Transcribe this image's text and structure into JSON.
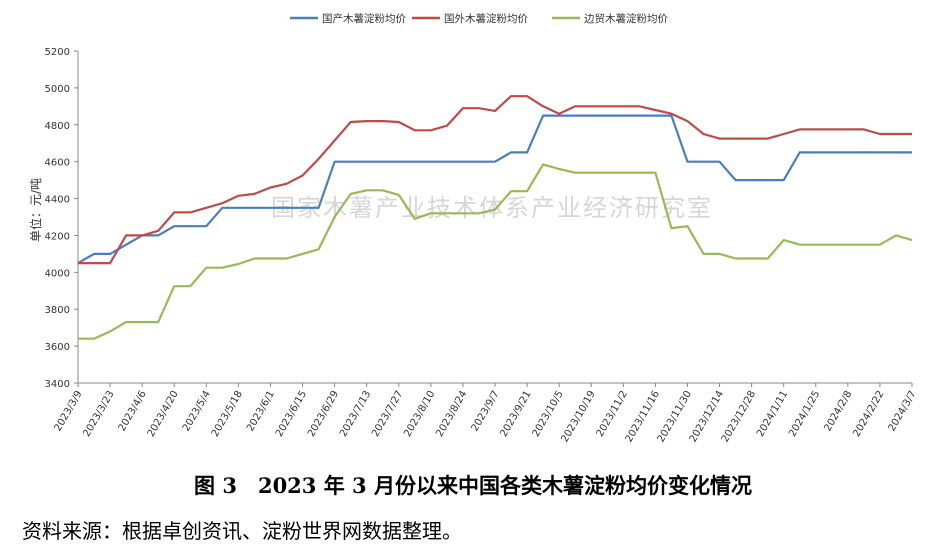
{
  "chart_data": {
    "type": "line",
    "ylabel": "单位：元/吨",
    "ylim": [
      3400,
      5200
    ],
    "yticks": [
      3400,
      3600,
      3800,
      4000,
      4200,
      4400,
      4600,
      4800,
      5000,
      5200
    ],
    "legend_position": "top-center",
    "grid": false,
    "watermark": "国家木薯产业技术体系产业经济研究室",
    "x": [
      "2023/3/9",
      "2023/3/16",
      "2023/3/23",
      "2023/3/30",
      "2023/4/6",
      "2023/4/13",
      "2023/4/20",
      "2023/4/27",
      "2023/5/4",
      "2023/5/11",
      "2023/5/18",
      "2023/5/25",
      "2023/6/1",
      "2023/6/8",
      "2023/6/15",
      "2023/6/22",
      "2023/6/29",
      "2023/7/6",
      "2023/7/13",
      "2023/7/20",
      "2023/7/27",
      "2023/8/3",
      "2023/8/10",
      "2023/8/17",
      "2023/8/24",
      "2023/8/31",
      "2023/9/7",
      "2023/9/14",
      "2023/9/21",
      "2023/9/28",
      "2023/10/5",
      "2023/10/12",
      "2023/10/19",
      "2023/10/26",
      "2023/11/2",
      "2023/11/9",
      "2023/11/16",
      "2023/11/23",
      "2023/11/30",
      "2023/12/7",
      "2023/12/14",
      "2023/12/21",
      "2023/12/28",
      "2024/1/4",
      "2024/1/11",
      "2024/1/18",
      "2024/1/25",
      "2024/2/1",
      "2024/2/8",
      "2024/2/15",
      "2024/2/22",
      "2024/2/29",
      "2024/3/7"
    ],
    "xtick_labels": [
      "2023/3/9",
      "2023/3/23",
      "2023/4/6",
      "2023/4/20",
      "2023/5/4",
      "2023/5/18",
      "2023/6/1",
      "2023/6/15",
      "2023/6/29",
      "2023/7/13",
      "2023/7/27",
      "2023/8/10",
      "2023/8/24",
      "2023/9/7",
      "2023/9/21",
      "2023/10/5",
      "2023/10/19",
      "2023/11/2",
      "2023/11/16",
      "2023/11/30",
      "2023/12/14",
      "2023/12/28",
      "2024/1/11",
      "2024/1/25",
      "2024/2/8",
      "2024/2/22",
      "2024/3/7"
    ],
    "series": [
      {
        "name": "国产木薯淀粉均价",
        "color": "#4a7ebb",
        "values": [
          4050,
          4100,
          4100,
          4150,
          4200,
          4200,
          4250,
          4250,
          4250,
          4350,
          4350,
          4350,
          4350,
          4350,
          4350,
          4350,
          4600,
          4600,
          4600,
          4600,
          4600,
          4600,
          4600,
          4600,
          4600,
          4600,
          4600,
          4650,
          4650,
          4850,
          4850,
          4850,
          4850,
          4850,
          4850,
          4850,
          4850,
          4850,
          4600,
          4600,
          4600,
          4500,
          4500,
          4500,
          4500,
          4650,
          4650,
          4650,
          4650,
          4650,
          4650,
          4650,
          4650
        ]
      },
      {
        "name": "国外木薯淀粉均价",
        "color": "#be4b48",
        "values": [
          4050,
          4050,
          4050,
          4200,
          4200,
          4225,
          4325,
          4325,
          4350,
          4375,
          4415,
          4425,
          4460,
          4480,
          4525,
          4615,
          4715,
          4815,
          4820,
          4820,
          4815,
          4770,
          4770,
          4795,
          4890,
          4890,
          4875,
          4955,
          4955,
          4900,
          4860,
          4900,
          4900,
          4900,
          4900,
          4900,
          4880,
          4860,
          4820,
          4750,
          4725,
          4725,
          4725,
          4725,
          4750,
          4775,
          4775,
          4775,
          4775,
          4775,
          4750,
          4750,
          4750
        ]
      },
      {
        "name": "边贸木薯淀粉均价",
        "color": "#98b954",
        "values": [
          3640,
          3640,
          3680,
          3730,
          3730,
          3730,
          3925,
          3925,
          4025,
          4025,
          4045,
          4075,
          4075,
          4075,
          4100,
          4125,
          4300,
          4425,
          4445,
          4445,
          4420,
          4290,
          4320,
          4320,
          4320,
          4320,
          4340,
          4440,
          4440,
          4585,
          4560,
          4540,
          4540,
          4540,
          4540,
          4540,
          4540,
          4240,
          4250,
          4100,
          4100,
          4075,
          4075,
          4075,
          4175,
          4150,
          4150,
          4150,
          4150,
          4150,
          4150,
          4200,
          4175
        ]
      }
    ]
  },
  "caption": "图 3　2023 年 3 月份以来中国各类木薯淀粉均价变化情况",
  "source": "资料来源：根据卓创资讯、淀粉世界网数据整理。"
}
